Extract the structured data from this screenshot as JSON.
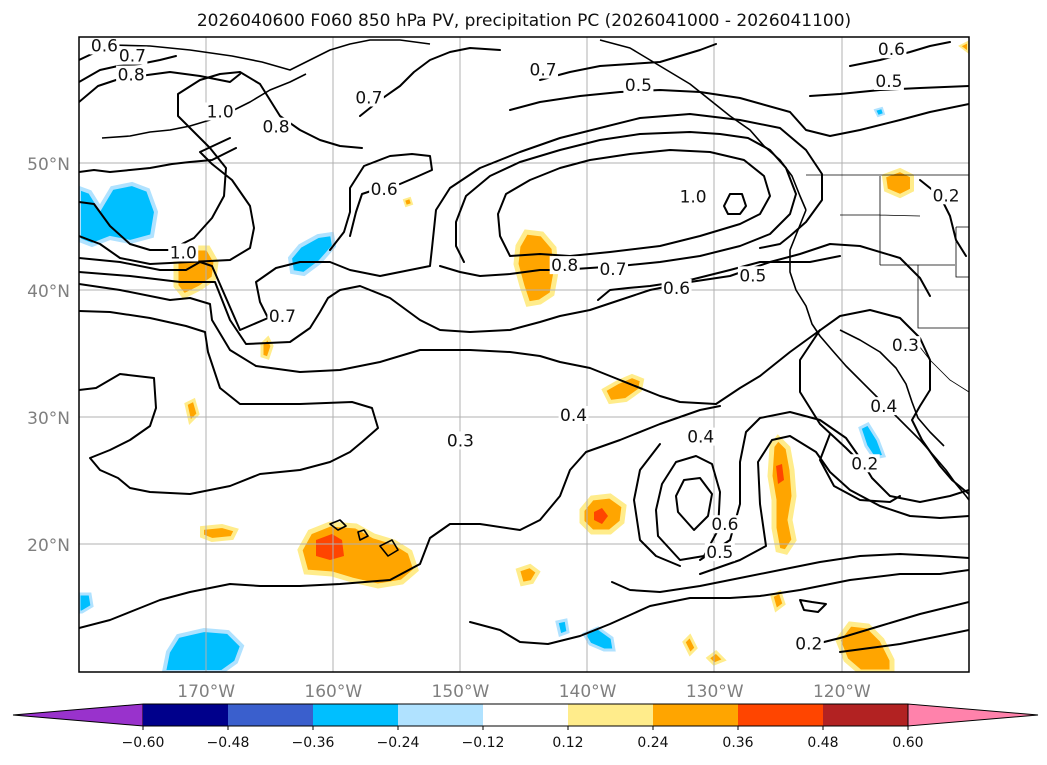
{
  "title": "2026040600 F060 850 hPa PV, precipitation PC (2026041000 - 2026041100)",
  "map": {
    "lon_range": [
      -180,
      -110
    ],
    "lat_range": [
      10,
      60
    ],
    "lat_ticks": [
      {
        "value": 50,
        "label": "50°N"
      },
      {
        "value": 40,
        "label": "40°N"
      },
      {
        "value": 30,
        "label": "30°N"
      },
      {
        "value": 20,
        "label": "20°N"
      }
    ],
    "lon_ticks": [
      {
        "value": -170,
        "label": "170°W"
      },
      {
        "value": -160,
        "label": "160°W"
      },
      {
        "value": -150,
        "label": "150°W"
      },
      {
        "value": -140,
        "label": "140°W"
      },
      {
        "value": -130,
        "label": "130°W"
      },
      {
        "value": -120,
        "label": "120°W"
      }
    ],
    "grid": true
  },
  "contour_labels": [
    {
      "text": "0.6",
      "lon": -178.0,
      "lat": 59.1
    },
    {
      "text": "0.7",
      "lon": -175.8,
      "lat": 58.3
    },
    {
      "text": "0.8",
      "lon": -175.9,
      "lat": 56.8
    },
    {
      "text": "1.0",
      "lon": -168.9,
      "lat": 53.9
    },
    {
      "text": "0.8",
      "lon": -164.5,
      "lat": 52.7
    },
    {
      "text": "0.7",
      "lon": -157.2,
      "lat": 55.0
    },
    {
      "text": "0.7",
      "lon": -143.5,
      "lat": 57.2
    },
    {
      "text": "0.5",
      "lon": -136.0,
      "lat": 56.0
    },
    {
      "text": "0.6",
      "lon": -116.1,
      "lat": 58.8
    },
    {
      "text": "0.5",
      "lon": -116.3,
      "lat": 56.3
    },
    {
      "text": "0.6",
      "lon": -156.0,
      "lat": 47.8
    },
    {
      "text": "1.0",
      "lon": -131.7,
      "lat": 47.2
    },
    {
      "text": "0.2",
      "lon": -111.8,
      "lat": 47.3
    },
    {
      "text": "1.0",
      "lon": -171.8,
      "lat": 42.8
    },
    {
      "text": "0.8",
      "lon": -141.8,
      "lat": 41.8
    },
    {
      "text": "0.7",
      "lon": -138.0,
      "lat": 41.5
    },
    {
      "text": "0.6",
      "lon": -133.0,
      "lat": 40.0
    },
    {
      "text": "0.5",
      "lon": -127.0,
      "lat": 41.0
    },
    {
      "text": "0.7",
      "lon": -164.0,
      "lat": 37.8
    },
    {
      "text": "0.3",
      "lon": -115.0,
      "lat": 35.5
    },
    {
      "text": "0.4",
      "lon": -116.7,
      "lat": 30.7
    },
    {
      "text": "0.4",
      "lon": -141.1,
      "lat": 30.0
    },
    {
      "text": "0.3",
      "lon": -150.0,
      "lat": 28.0
    },
    {
      "text": "0.4",
      "lon": -131.1,
      "lat": 28.3
    },
    {
      "text": "0.2",
      "lon": -118.2,
      "lat": 26.2
    },
    {
      "text": "0.6",
      "lon": -129.2,
      "lat": 21.4
    },
    {
      "text": "0.5",
      "lon": -129.6,
      "lat": 19.2
    },
    {
      "text": "0.2",
      "lon": -122.6,
      "lat": 12.0
    }
  ],
  "colorbar": {
    "levels": [
      "−0.60",
      "−0.48",
      "−0.36",
      "−0.24",
      "−0.12",
      "0.12",
      "0.24",
      "0.36",
      "0.48",
      "0.60"
    ],
    "colors": [
      "#9932cc",
      "#00008b",
      "#3a5fcd",
      "#00bfff",
      "#b0e2ff",
      "#ffffff",
      "#ffec8b",
      "#ffa500",
      "#ff4500",
      "#b22222",
      "#ff82ab"
    ],
    "extend": "both"
  }
}
